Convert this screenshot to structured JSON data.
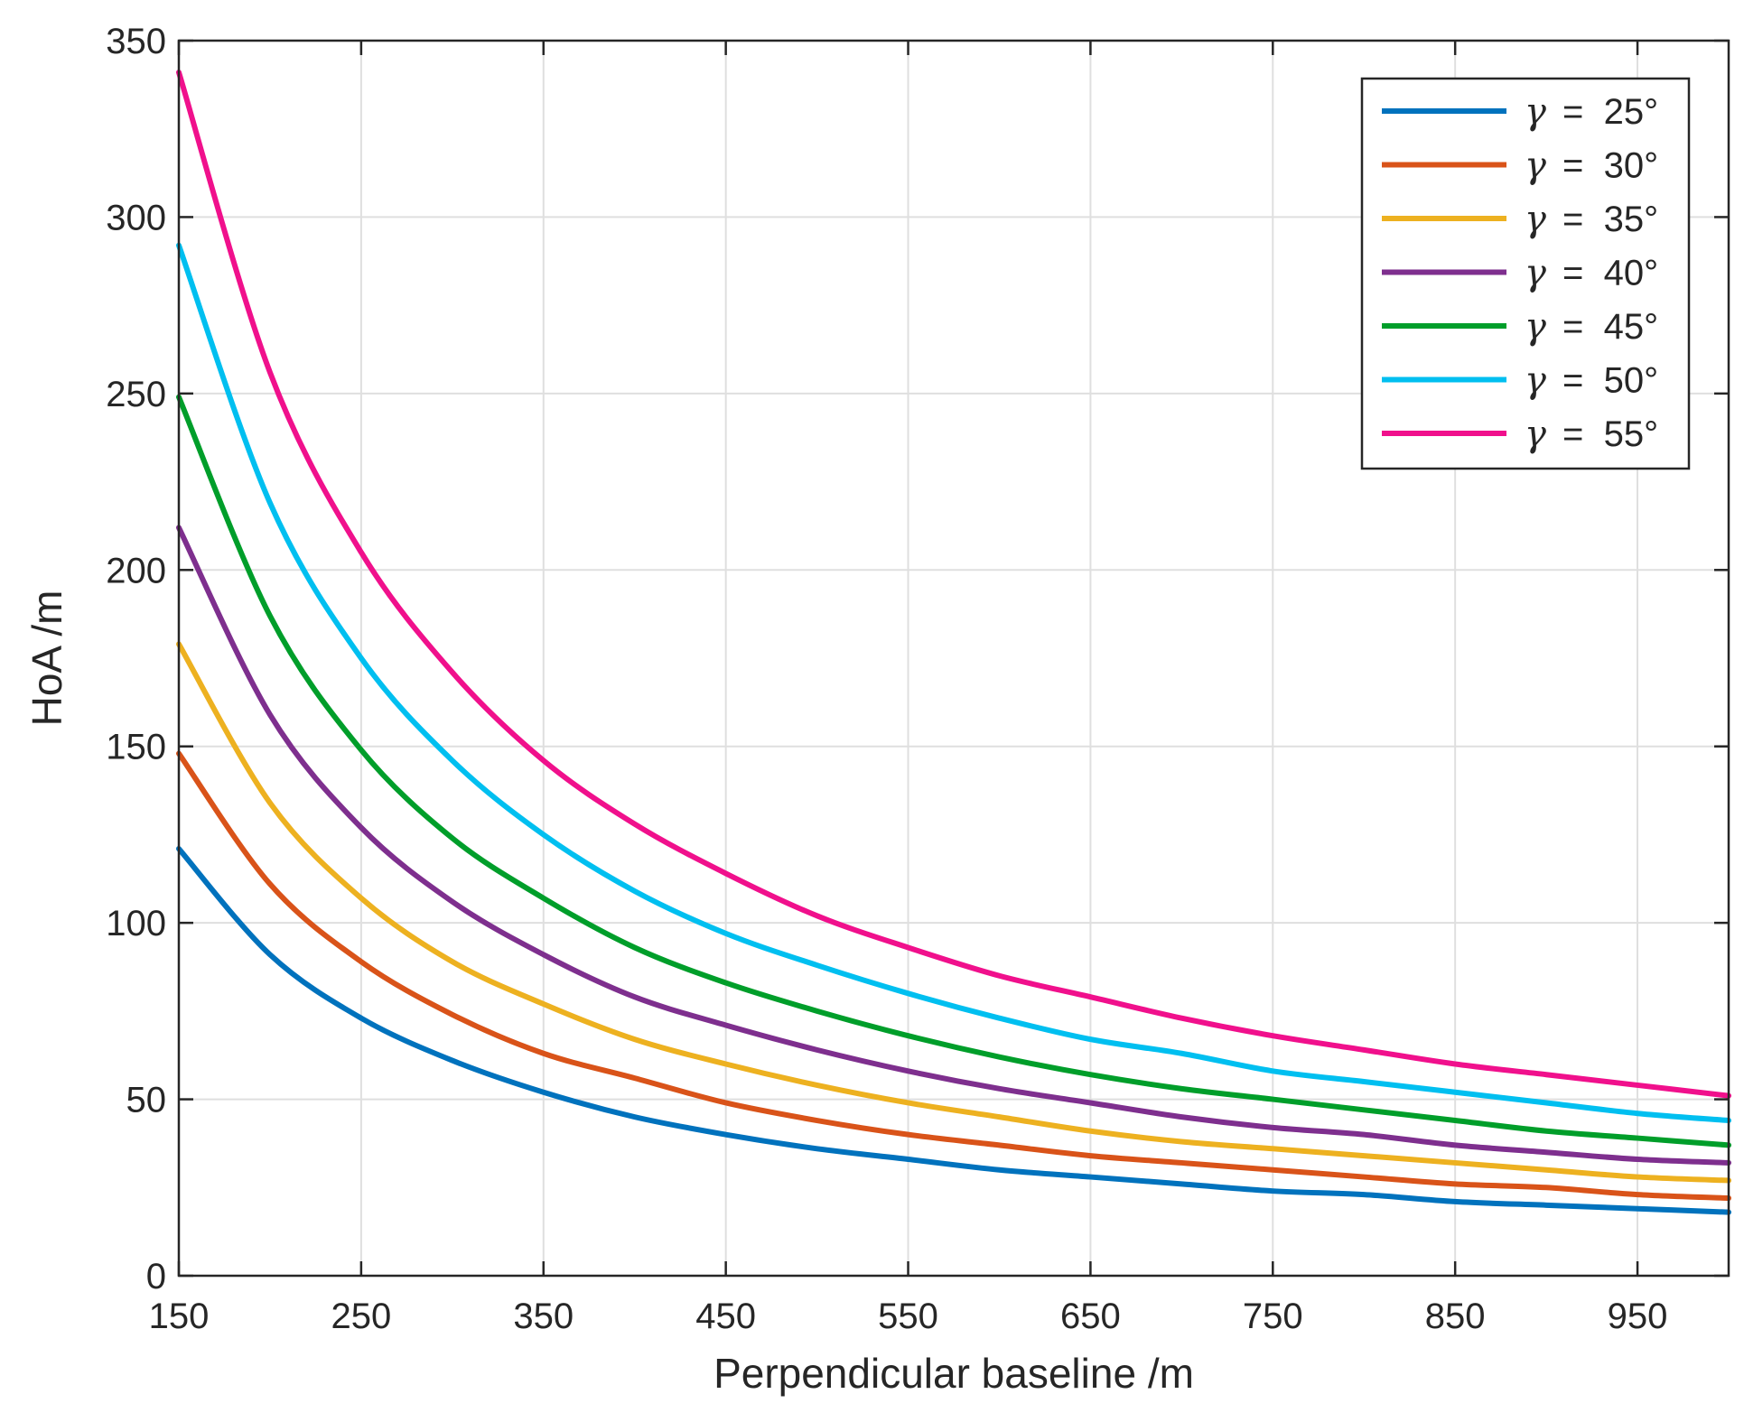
{
  "chart_data": {
    "type": "line",
    "xlabel": "Perpendicular baseline /m",
    "ylabel": "HoA /m",
    "xlim": [
      150,
      1000
    ],
    "ylim": [
      0,
      350
    ],
    "xticks": [
      150,
      250,
      350,
      450,
      550,
      650,
      750,
      850,
      950
    ],
    "yticks": [
      0,
      50,
      100,
      150,
      200,
      250,
      300,
      350
    ],
    "grid": true,
    "legend_position": "top-right",
    "x": [
      150,
      200,
      250,
      300,
      350,
      400,
      450,
      500,
      550,
      600,
      650,
      700,
      750,
      800,
      850,
      900,
      950,
      1000
    ],
    "series": [
      {
        "name": "γ = 25°",
        "color": "#0072BD",
        "values": [
          121,
          91,
          73,
          61,
          52,
          45,
          40,
          36,
          33,
          30,
          28,
          26,
          24,
          23,
          21,
          20,
          19,
          18
        ]
      },
      {
        "name": "γ = 30°",
        "color": "#D95319",
        "values": [
          148,
          111,
          89,
          74,
          63,
          56,
          49,
          44,
          40,
          37,
          34,
          32,
          30,
          28,
          26,
          25,
          23,
          22
        ]
      },
      {
        "name": "γ = 35°",
        "color": "#EDB120",
        "values": [
          179,
          134,
          107,
          89,
          77,
          67,
          60,
          54,
          49,
          45,
          41,
          38,
          36,
          34,
          32,
          30,
          28,
          27
        ]
      },
      {
        "name": "γ = 40°",
        "color": "#7E2F8E",
        "values": [
          212,
          159,
          127,
          106,
          91,
          79,
          71,
          64,
          58,
          53,
          49,
          45,
          42,
          40,
          37,
          35,
          33,
          32
        ]
      },
      {
        "name": "γ = 45°",
        "color": "#009E2A",
        "values": [
          249,
          187,
          149,
          124,
          107,
          93,
          83,
          75,
          68,
          62,
          57,
          53,
          50,
          47,
          44,
          41,
          39,
          37
        ]
      },
      {
        "name": "γ = 50°",
        "color": "#00BFF0",
        "values": [
          292,
          219,
          175,
          146,
          125,
          109,
          97,
          88,
          80,
          73,
          67,
          63,
          58,
          55,
          52,
          49,
          46,
          44
        ]
      },
      {
        "name": "γ = 55°",
        "color": "#F0108C",
        "values": [
          341,
          256,
          205,
          171,
          146,
          128,
          114,
          102,
          93,
          85,
          79,
          73,
          68,
          64,
          60,
          57,
          54,
          51
        ]
      }
    ],
    "legend_gamma": "γ",
    "legend_values": [
      "=  25°",
      "=  30°",
      "=  35°",
      "=  40°",
      "=  45°",
      "=  50°",
      "=  55°"
    ]
  }
}
